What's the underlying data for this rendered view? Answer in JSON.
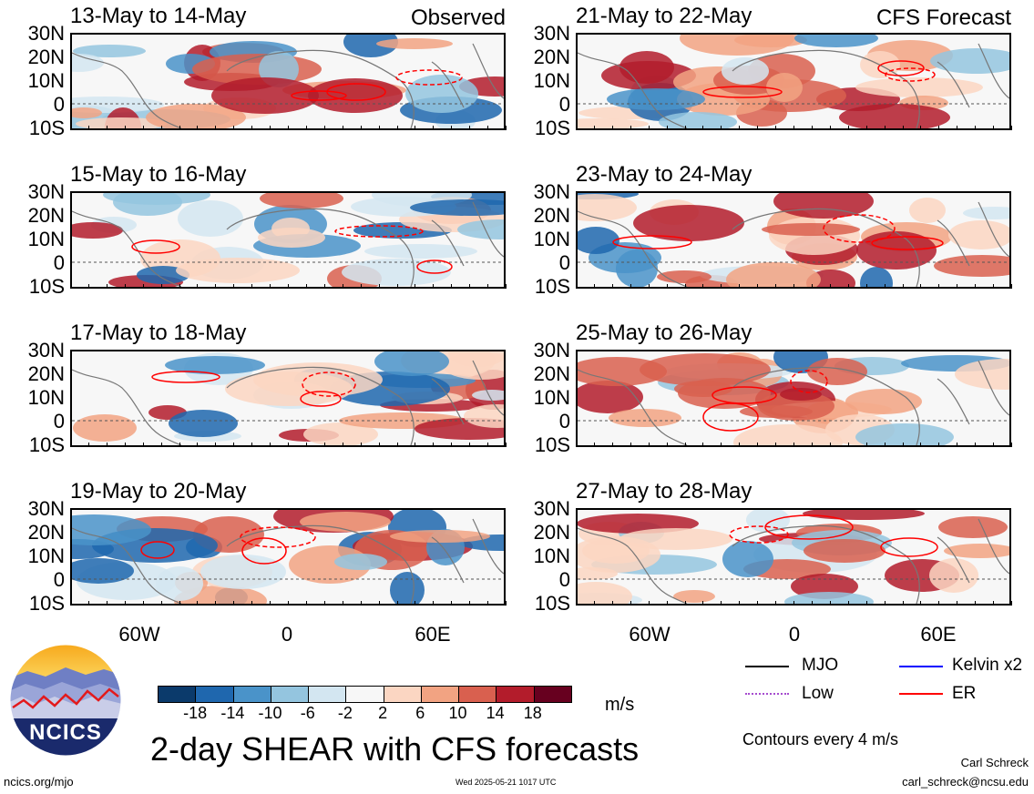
{
  "panels": [
    {
      "col": 0,
      "row": 0,
      "title": "13-May to 14-May",
      "tag": "Observed"
    },
    {
      "col": 1,
      "row": 0,
      "title": "21-May to 22-May",
      "tag": "CFS Forecast"
    },
    {
      "col": 0,
      "row": 1,
      "title": "15-May to 16-May",
      "tag": ""
    },
    {
      "col": 1,
      "row": 1,
      "title": "23-May to 24-May",
      "tag": ""
    },
    {
      "col": 0,
      "row": 2,
      "title": "17-May to 18-May",
      "tag": ""
    },
    {
      "col": 1,
      "row": 2,
      "title": "25-May to 26-May",
      "tag": ""
    },
    {
      "col": 0,
      "row": 3,
      "title": "19-May to 20-May",
      "tag": ""
    },
    {
      "col": 1,
      "row": 3,
      "title": "27-May to 28-May",
      "tag": ""
    }
  ],
  "lat_labels": [
    "30N",
    "20N",
    "10N",
    "0",
    "10S"
  ],
  "lon_labels": [
    "60W",
    "0",
    "60E"
  ],
  "colorbar": {
    "labels": [
      "-18",
      "-14",
      "-10",
      "-6",
      "-2",
      "2",
      "6",
      "10",
      "14",
      "18"
    ],
    "colors": [
      "#0b3a6b",
      "#1f67ae",
      "#4a93c9",
      "#94c5df",
      "#d3e6f1",
      "#f7f7f7",
      "#fbd6c2",
      "#f2a382",
      "#d9604f",
      "#b31c2b",
      "#67001f"
    ],
    "unit": "m/s"
  },
  "legend": {
    "items": [
      {
        "label": "MJO",
        "color": "#000000",
        "style": "solid"
      },
      {
        "label": "Kelvin x2",
        "color": "#0000ff",
        "style": "solid"
      },
      {
        "label": "Low",
        "color": "#a64ccf",
        "style": "dotted"
      },
      {
        "label": "ER",
        "color": "#ff0000",
        "style": "solid"
      }
    ],
    "note": "Contours every 4 m/s"
  },
  "main_title": "2-day SHEAR with CFS forecasts",
  "logo_text": "NCICS",
  "footer": {
    "url": "ncics.org/mjo",
    "timestamp": "Wed 2025-05-21 1017 UTC",
    "author": "Carl Schreck",
    "email": "carl_schreck@ncsu.edu"
  }
}
